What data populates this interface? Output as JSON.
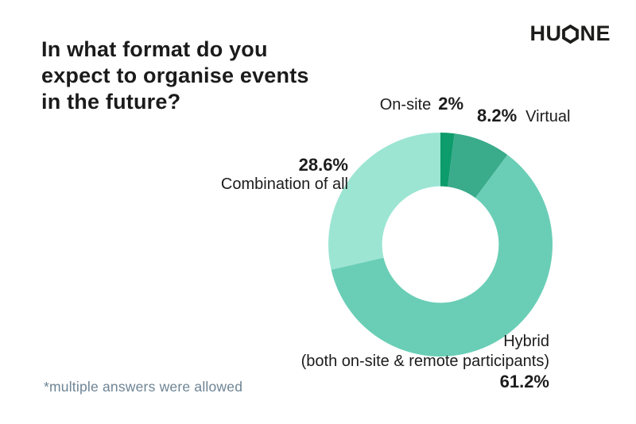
{
  "title": {
    "lines": [
      "In what format do you",
      "expect to organise events",
      "in the future?"
    ]
  },
  "logo": {
    "left": "HU",
    "right": "NE",
    "o_shape": "hexagon-outline",
    "color": "#1d1d1b"
  },
  "chart_data": {
    "type": "pie",
    "subtype": "donut",
    "title": "In what format do you expect to organise events in the future?",
    "note": "*multiple answers were allowed",
    "start_angle_deg": 0,
    "direction": "clockwise",
    "inner_radius_ratio": 0.52,
    "legend_position": "around-chart",
    "segments": [
      {
        "id": "onsite",
        "label": "On-site",
        "value": 2,
        "value_label": "2%",
        "color": "#0d9c6c"
      },
      {
        "id": "virtual",
        "label": "Virtual",
        "value": 8.2,
        "value_label": "8.2%",
        "color": "#3aab8b"
      },
      {
        "id": "hybrid",
        "label": "Hybrid (both on-site & remote participants)",
        "value": 61.2,
        "value_label": "61.2%",
        "color": "#6aceb6"
      },
      {
        "id": "combination",
        "label": "Combination of all",
        "value": 28.6,
        "value_label": "28.6%",
        "color": "#9ce5d3"
      }
    ]
  },
  "callouts": {
    "onsite": {
      "label": "On-site",
      "value": "2%"
    },
    "virtual": {
      "value": "8.2%",
      "label": "Virtual"
    },
    "combination": {
      "value": "28.6%",
      "label": "Combination of all"
    },
    "hybrid": {
      "line1": "Hybrid",
      "line2": "(both on-site & remote participants)",
      "value": "61.2%"
    }
  },
  "footnote": {
    "text": "*multiple answers were allowed"
  }
}
